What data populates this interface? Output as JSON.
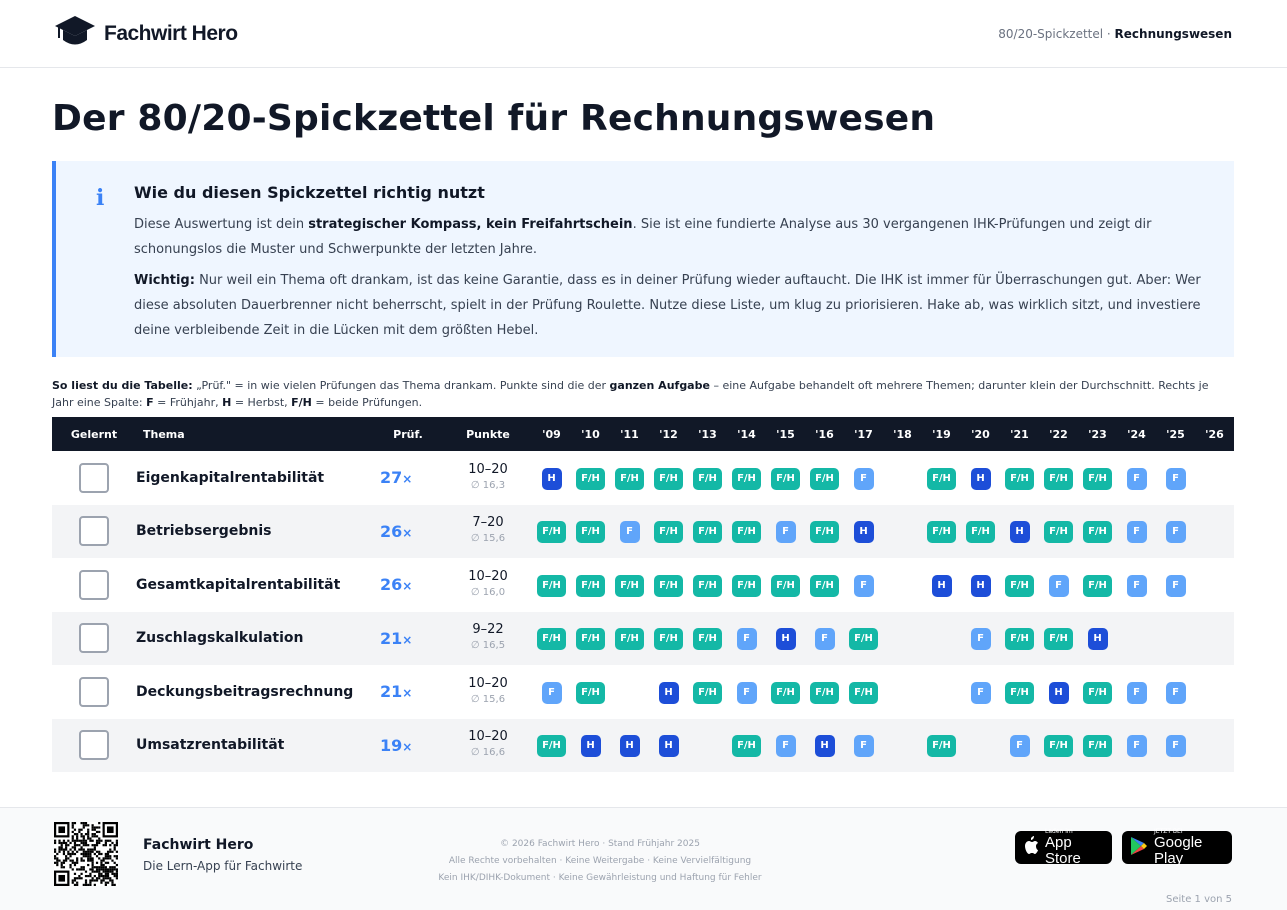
{
  "header": {
    "brand": "Fachwirt Hero",
    "crumb_prefix": "80/20-Spickzettel · ",
    "crumb_current": "Rechnungswesen"
  },
  "page_title": "Der 80/20-Spickzettel für Rechnungswesen",
  "info": {
    "icon": "i",
    "title": "Wie du diesen Spickzettel richtig nutzt",
    "p1_pre": "Diese Auswertung ist dein ",
    "p1_bold": "strategischer Kompass, kein Freifahrtschein",
    "p1_post": ". Sie ist eine fundierte Analyse aus 30 vergangenen IHK-Prüfungen und zeigt dir schonungslos die Muster und Schwerpunkte der letzten Jahre.",
    "p2_bold": "Wichtig:",
    "p2_post": " Nur weil ein Thema oft drankam, ist das keine Garantie, dass es in deiner Prüfung wieder auftaucht. Die IHK ist immer für Überraschungen gut. Aber: Wer diese absoluten Dauerbrenner nicht beherrscht, spielt in der Prüfung Roulette. Nutze diese Liste, um klug zu priorisieren. Hake ab, was wirklich sitzt, und investiere deine verbleibende Zeit in die Lücken mit dem größten Hebel."
  },
  "legend": {
    "l1": "So liest du die Tabelle:",
    "l2": " „Prüf.\" = in wie vielen Prüfungen das Thema drankam. Punkte sind die der ",
    "l3": "ganzen Aufgabe",
    "l4": " – eine Aufgabe behandelt oft mehrere Themen; darunter klein der Durchschnitt. Rechts je Jahr eine Spalte: ",
    "l5": "F",
    "l6": " = Frühjahr, ",
    "l7": "H",
    "l8": " = Herbst, ",
    "l9": "F/H",
    "l10": " = beide Prüfungen."
  },
  "table": {
    "headers": [
      "Gelernt",
      "Thema",
      "Prüf.",
      "Punkte"
    ],
    "years": [
      "'09",
      "'10",
      "'11",
      "'12",
      "'13",
      "'14",
      "'15",
      "'16",
      "'17",
      "'18",
      "'19",
      "'20",
      "'21",
      "'22",
      "'23",
      "'24",
      "'25",
      "'26"
    ],
    "rows": [
      {
        "topic": "Eigenkapitalrentabilität",
        "count": "27",
        "pts": "10–20",
        "avg": "∅ 16,3",
        "cells": [
          "H",
          "F/H",
          "F/H",
          "F/H",
          "F/H",
          "F/H",
          "F/H",
          "F/H",
          "F",
          "",
          "F/H",
          "H",
          "F/H",
          "F/H",
          "F/H",
          "F",
          "F",
          ""
        ]
      },
      {
        "topic": "Betriebsergebnis",
        "count": "26",
        "pts": "7–20",
        "avg": "∅ 15,6",
        "cells": [
          "F/H",
          "F/H",
          "F",
          "F/H",
          "F/H",
          "F/H",
          "F",
          "F/H",
          "H",
          "",
          "F/H",
          "F/H",
          "H",
          "F/H",
          "F/H",
          "F",
          "F",
          ""
        ]
      },
      {
        "topic": "Gesamtkapitalrentabilität",
        "count": "26",
        "pts": "10–20",
        "avg": "∅ 16,0",
        "cells": [
          "F/H",
          "F/H",
          "F/H",
          "F/H",
          "F/H",
          "F/H",
          "F/H",
          "F/H",
          "F",
          "",
          "H",
          "H",
          "F/H",
          "F",
          "F/H",
          "F",
          "F",
          ""
        ]
      },
      {
        "topic": "Zuschlagskalkulation",
        "count": "21",
        "pts": "9–22",
        "avg": "∅ 16,5",
        "cells": [
          "F/H",
          "F/H",
          "F/H",
          "F/H",
          "F/H",
          "F",
          "H",
          "F",
          "F/H",
          "",
          "",
          "F",
          "F/H",
          "F/H",
          "H",
          "",
          "",
          ""
        ]
      },
      {
        "topic": "Deckungsbeitragsrechnung",
        "count": "21",
        "pts": "10–20",
        "avg": "∅ 15,6",
        "cells": [
          "F",
          "F/H",
          "",
          "H",
          "F/H",
          "F",
          "F/H",
          "F/H",
          "F/H",
          "",
          "",
          "F",
          "F/H",
          "H",
          "F/H",
          "F",
          "F",
          ""
        ]
      },
      {
        "topic": "Umsatzrentabilität",
        "count": "19",
        "pts": "10–20",
        "avg": "∅ 16,6",
        "cells": [
          "F/H",
          "H",
          "H",
          "H",
          "",
          "F/H",
          "F",
          "H",
          "F",
          "",
          "F/H",
          "",
          "F",
          "F/H",
          "F/H",
          "F",
          "F",
          ""
        ]
      }
    ],
    "count_suffix": "×"
  },
  "colors": {
    "fh": "#14b8a6",
    "h": "#1d4ed8",
    "f": "#60a5fa",
    "accent": "#3b82f6"
  },
  "footer": {
    "title": "Fachwirt Hero",
    "subtitle": "Die Lern-App für Fachwirte",
    "line1": "© 2026 Fachwirt Hero · Stand Frühjahr 2025",
    "line2": "Alle Rechte vorbehalten · Keine Weitergabe · Keine Vervielfältigung",
    "line3": "Kein IHK/DIHK-Dokument · Keine Gewährleistung und Haftung für Fehler",
    "appstore_small": "Laden im",
    "appstore_big": "App Store",
    "play_small": "JETZT BEI",
    "play_big": "Google Play",
    "page": "Seite 1 von 5"
  }
}
